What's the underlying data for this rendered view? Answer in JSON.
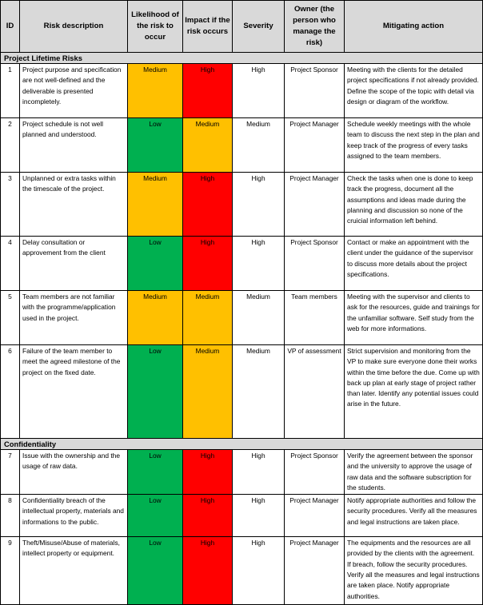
{
  "headers": {
    "id": "ID",
    "desc": "Risk description",
    "likelihood": "Likelihood of the risk to occur",
    "impact": "Impact if the risk occurs",
    "severity": "Severity",
    "owner": "Owner (the person who manage the risk)",
    "action": "Mitigating action"
  },
  "colors": {
    "Medium": "#ffc000",
    "High": "#ff0000",
    "Low": "#00b050",
    "header": "#d9d9d9"
  },
  "sections": [
    {
      "title": "Project Lifetime Risks",
      "rows": [
        {
          "id": "1",
          "desc": "Project purpose and specification are not well-defined and the deliverable is presented incompletely.",
          "likelihood": "Medium",
          "impact": "High",
          "severity": "High",
          "owner": "Project Sponsor",
          "action": "Meeting with the clients for the detailed project specifications if not already provided. Define the scope of the topic with detail via design or diagram of the workflow."
        },
        {
          "id": "2",
          "desc": "Project schedule is not well planned and understood.",
          "likelihood": "Low",
          "impact": "Medium",
          "severity": "Medium",
          "owner": "Project Manager",
          "action": "Schedule weekly meetings with the whole team to discuss the next step in the plan and keep track of the progress of every tasks assigned to the team members."
        },
        {
          "id": "3",
          "desc": "Unplanned or extra tasks within the timescale of the project.",
          "likelihood": "Medium",
          "impact": "High",
          "severity": "High",
          "owner": "Project Manager",
          "action": "Check the tasks when one is done to keep track the progress, document all the assumptions and ideas made during the planning and discussion so none of the cruicial information left behind."
        },
        {
          "id": "4",
          "desc": "Delay consultation or approvement from the client",
          "likelihood": "Low",
          "impact": "High",
          "severity": "High",
          "owner": "Project Sponsor",
          "action": "Contact or make an appointment with the client under the guidance of the supervisor to discuss more details about the project specifications."
        },
        {
          "id": "5",
          "desc": "Team members are not familiar with the programme/application used in the project.",
          "likelihood": "Medium",
          "impact": "Medium",
          "severity": "Medium",
          "owner": "Team members",
          "action": "Meeting with the supervisor and clients to ask for the resources, guide and trainings for the unfamiliar software. Self study from the web for more informations."
        },
        {
          "id": "6",
          "desc": "Failure of the team member to meet the agreed milestone of the project on the fixed date.",
          "likelihood": "Low",
          "impact": "Medium",
          "severity": "Medium",
          "owner": "VP of assessment",
          "action": "Strict supervision and monitoring from the VP to make sure everyone done their works within the time before the due. Come up with back up plan at early stage of project rather than later. Identify any potential issues could arise in the future."
        }
      ]
    },
    {
      "title": "Confidentiality",
      "rows": [
        {
          "id": "7",
          "desc": "Issue with the ownership and the usage of raw data.",
          "likelihood": "Low",
          "impact": "High",
          "severity": "High",
          "owner": "Project Sponsor",
          "action": "Verify the agreement between the sponsor and the university to approve the usage of raw data and the software subscription for the students."
        },
        {
          "id": "8",
          "desc": "Confidentiality breach of the intellectual property, materials and informations to the public.",
          "likelihood": "Low",
          "impact": "High",
          "severity": "High",
          "owner": "Project Manager",
          "action": "Notify appropriate authorities and follow the security procedures. Verify all the measures and legal instructions are taken place."
        },
        {
          "id": "9",
          "desc": "Theft/Misuse/Abuse of materials, intellect property or equipment.",
          "likelihood": "Low",
          "impact": "High",
          "severity": "High",
          "owner": "Project Manager",
          "action": "The equipments and the resources are all provided by the clients with the agreement. If breach, follow the security procedures. Verify all the measures and legal instructions are taken place. Notify appropriate authorities."
        }
      ]
    }
  ]
}
